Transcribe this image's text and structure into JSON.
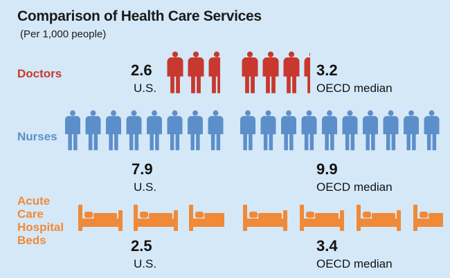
{
  "title": "Comparison of Health Care Services",
  "subtitle": "(Per 1,000 people)",
  "colors": {
    "background": "#d5e8f7",
    "doctors": "#c8382e",
    "nurses": "#5c8fca",
    "beds": "#f08a38"
  },
  "chart_data": {
    "type": "pictograph",
    "title": "Comparison of Health Care Services",
    "subtitle": "(Per 1,000 people)",
    "unit": "per 1,000 people",
    "categories": [
      "Doctors",
      "Nurses",
      "Acute Care Hospital Beds"
    ],
    "series": [
      {
        "name": "U.S.",
        "values": [
          2.6,
          7.9,
          2.5
        ]
      },
      {
        "name": "OECD median",
        "values": [
          3.2,
          9.9,
          3.4
        ]
      }
    ],
    "rows": [
      {
        "label": "Doctors",
        "us_value": "2.6",
        "us_label": "U.S.",
        "oecd_value": "3.2",
        "oecd_label": "OECD median",
        "icon": "person-icon"
      },
      {
        "label": "Nurses",
        "us_value": "7.9",
        "us_label": "U.S.",
        "oecd_value": "9.9",
        "oecd_label": "OECD median",
        "icon": "person-icon"
      },
      {
        "label": "Acute Care Hospital Beds",
        "us_value": "2.5",
        "us_label": "U.S.",
        "oecd_value": "3.4",
        "oecd_label": "OECD median",
        "icon": "bed-icon"
      }
    ]
  }
}
